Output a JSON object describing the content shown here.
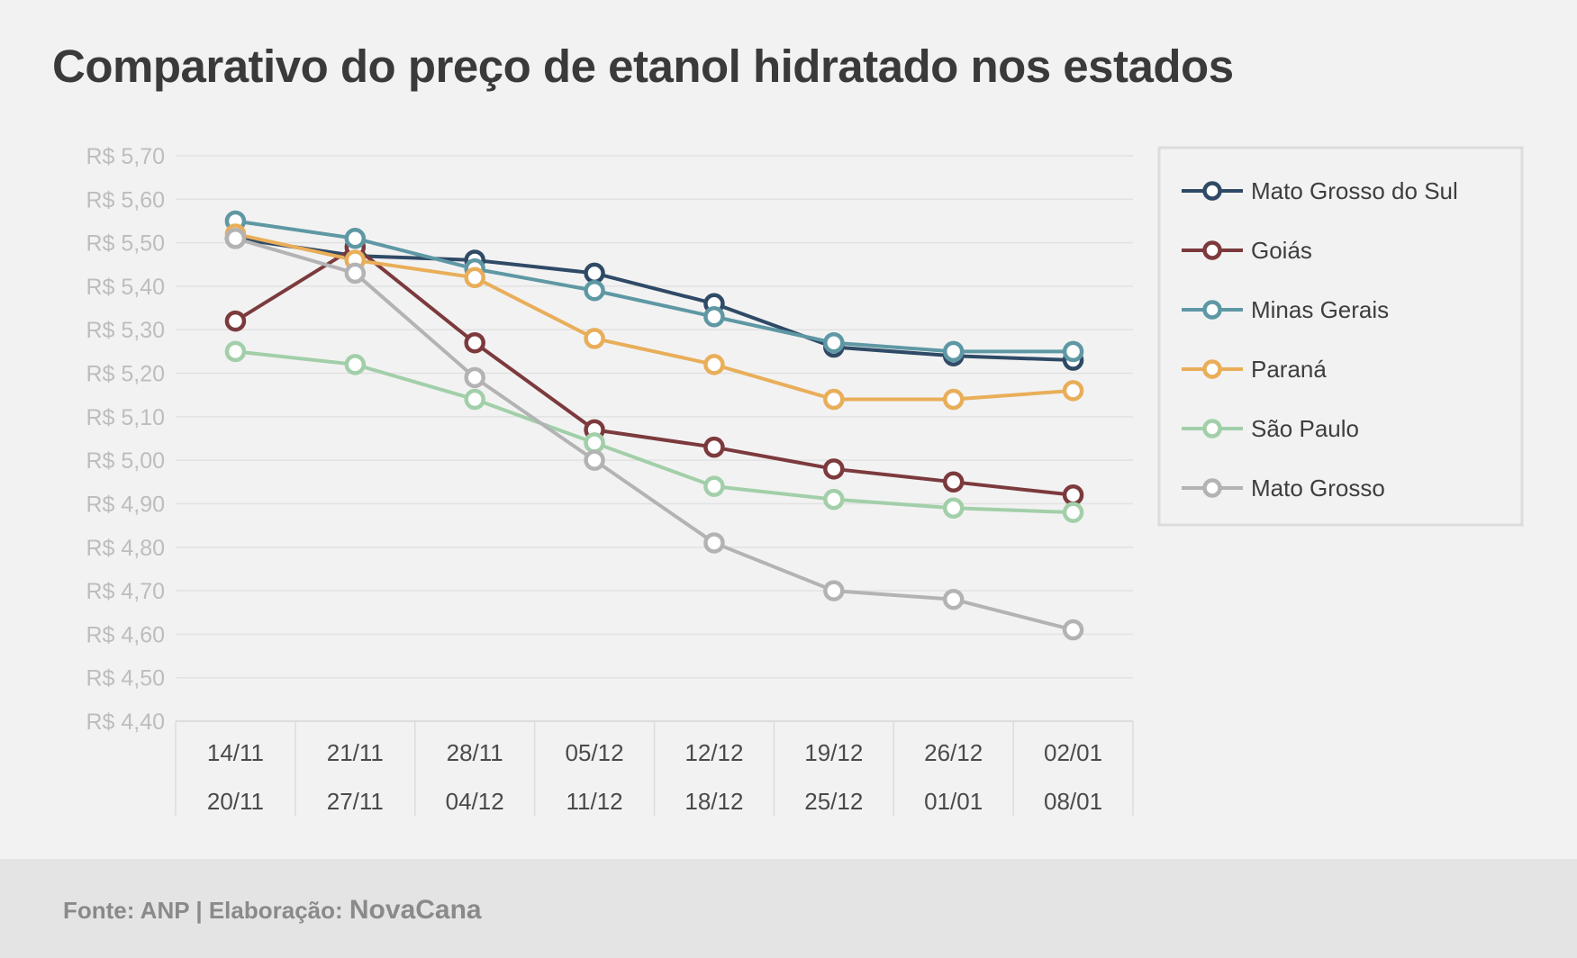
{
  "chart_data": {
    "type": "line",
    "title": "Comparativo do preço de etanol hidratado nos estados",
    "xlabel": "",
    "ylabel": "",
    "ylim": [
      4.4,
      5.7
    ],
    "y_step": 0.1,
    "y_tick_labels": [
      "R$ 4,40",
      "R$ 4,50",
      "R$ 4,60",
      "R$ 4,70",
      "R$ 4,80",
      "R$ 4,90",
      "R$ 5,00",
      "R$ 5,10",
      "R$ 5,20",
      "R$ 5,30",
      "R$ 5,40",
      "R$ 5,50",
      "R$ 5,60",
      "R$ 5,70"
    ],
    "categories": [
      {
        "start": "14/11",
        "end": "20/11"
      },
      {
        "start": "21/11",
        "end": "27/11"
      },
      {
        "start": "28/11",
        "end": "04/12"
      },
      {
        "start": "05/12",
        "end": "11/12"
      },
      {
        "start": "12/12",
        "end": "18/12"
      },
      {
        "start": "19/12",
        "end": "25/12"
      },
      {
        "start": "26/12",
        "end": "01/01"
      },
      {
        "start": "02/01",
        "end": "08/01"
      }
    ],
    "grid": true,
    "legend_position": "right",
    "series": [
      {
        "name": "Mato Grosso do Sul",
        "color": "#2f4a66",
        "values": [
          5.51,
          5.47,
          5.46,
          5.43,
          5.36,
          5.26,
          5.24,
          5.23
        ]
      },
      {
        "name": "Goiás",
        "color": "#7c3a3d",
        "values": [
          5.32,
          5.49,
          5.27,
          5.07,
          5.03,
          4.98,
          4.95,
          4.92
        ]
      },
      {
        "name": "Minas Gerais",
        "color": "#5e98a4",
        "values": [
          5.55,
          5.51,
          5.44,
          5.39,
          5.33,
          5.27,
          5.25,
          5.25
        ]
      },
      {
        "name": "Paraná",
        "color": "#e9ae59",
        "values": [
          5.52,
          5.46,
          5.42,
          5.28,
          5.22,
          5.14,
          5.14,
          5.16
        ]
      },
      {
        "name": "São Paulo",
        "color": "#a2cfa9",
        "values": [
          5.25,
          5.22,
          5.14,
          5.04,
          4.94,
          4.91,
          4.89,
          4.88
        ]
      },
      {
        "name": "Mato Grosso",
        "color": "#b3b3b3",
        "values": [
          5.51,
          5.43,
          5.19,
          5.0,
          4.81,
          4.7,
          4.68,
          4.61
        ]
      }
    ]
  },
  "footer": {
    "source": "Fonte: ANP | Elaboração:",
    "brand": "NovaCana"
  }
}
